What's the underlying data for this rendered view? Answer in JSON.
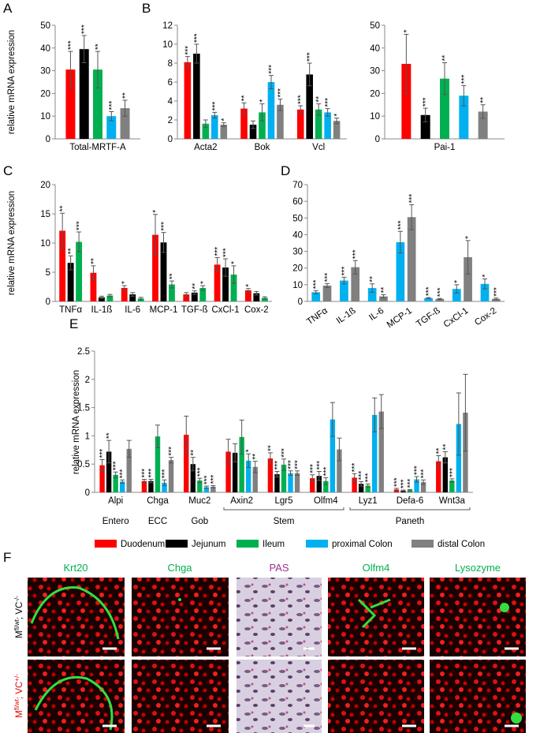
{
  "panel_labels": [
    "A",
    "B",
    "C",
    "D",
    "E",
    "F"
  ],
  "chart_data": [
    {
      "type": "bar",
      "ylabel": "relative mRNA expression",
      "categories": [
        "Total-MRTF-A"
      ],
      "ylim": [
        0,
        50
      ],
      "yticks": [
        0,
        10,
        20,
        30,
        40,
        50
      ],
      "series": [
        {
          "color": "#ff0000",
          "values": [
            30.5
          ],
          "errors": [
            8
          ],
          "significance": [
            "***"
          ]
        },
        {
          "color": "#000000",
          "values": [
            39.5
          ],
          "errors": [
            6
          ],
          "significance": [
            "***"
          ]
        },
        {
          "color": "#00b050",
          "values": [
            30.5
          ],
          "errors": [
            8
          ],
          "significance": [
            "**"
          ]
        },
        {
          "color": "#00b0f0",
          "values": [
            10
          ],
          "errors": [
            2
          ],
          "significance": [
            "***"
          ]
        },
        {
          "color": "#808080",
          "values": [
            13.5
          ],
          "errors": [
            3.5
          ],
          "significance": [
            "**"
          ]
        }
      ]
    },
    {
      "type": "bar",
      "categories": [
        "Acta2",
        "Bok",
        "Vcl"
      ],
      "ylim": [
        0,
        12
      ],
      "yticks": [
        0,
        2,
        4,
        6,
        8,
        10,
        12
      ],
      "series": [
        {
          "color": "#ff0000",
          "values": [
            8.1,
            3.2,
            3.1
          ],
          "errors": [
            0.6,
            0.6,
            0.4
          ],
          "significance": [
            "***",
            "**",
            "***"
          ]
        },
        {
          "color": "#000000",
          "values": [
            9,
            1.5,
            6.8
          ],
          "errors": [
            1,
            0.4,
            1.2
          ],
          "significance": [
            "***",
            null,
            "***"
          ]
        },
        {
          "color": "#00b050",
          "values": [
            1.6,
            2.8,
            3.1
          ],
          "errors": [
            0.4,
            0.9,
            0.6
          ],
          "significance": [
            null,
            "*",
            "**"
          ]
        },
        {
          "color": "#00b0f0",
          "values": [
            2.5,
            6,
            2.8
          ],
          "errors": [
            0.3,
            0.7,
            0.4
          ],
          "significance": [
            "***",
            "***",
            "***"
          ]
        },
        {
          "color": "#808080",
          "values": [
            1.5,
            3.6,
            1.9
          ],
          "errors": [
            0.2,
            0.6,
            0.3
          ],
          "significance": [
            "*",
            "***",
            "*"
          ]
        }
      ]
    },
    {
      "type": "bar",
      "categories": [
        "Pai-1"
      ],
      "ylim": [
        0,
        50
      ],
      "yticks": [
        0,
        10,
        20,
        30,
        40,
        50
      ],
      "series": [
        {
          "color": "#ff0000",
          "values": [
            33
          ],
          "errors": [
            13
          ],
          "significance": [
            "*"
          ]
        },
        {
          "color": "#000000",
          "values": [
            10.5
          ],
          "errors": [
            3
          ],
          "significance": [
            "***"
          ]
        },
        {
          "color": "#00b050",
          "values": [
            26.5
          ],
          "errors": [
            7
          ],
          "significance": [
            "**"
          ]
        },
        {
          "color": "#00b0f0",
          "values": [
            19
          ],
          "errors": [
            4.5
          ],
          "significance": [
            "***"
          ]
        },
        {
          "color": "#808080",
          "values": [
            12
          ],
          "errors": [
            3
          ],
          "significance": [
            "**"
          ]
        }
      ]
    },
    {
      "type": "bar",
      "ylabel": "relative mRNA expression",
      "categories": [
        "TNFα",
        "IL-1ß",
        "IL-6",
        "MCP-1",
        "TGF-ß",
        "CxCl-1",
        "Cox-2"
      ],
      "ylim": [
        0,
        20
      ],
      "yticks": [
        0,
        5,
        10,
        15,
        20
      ],
      "series": [
        {
          "color": "#ff0000",
          "values": [
            12.1,
            4.9,
            2.3,
            11.4,
            1.2,
            6.3,
            1.9
          ],
          "errors": [
            3,
            1.2,
            0.4,
            3.5,
            0.3,
            1.2,
            0.3
          ],
          "significance": [
            "**",
            "**",
            "*",
            "*",
            null,
            "***",
            "*"
          ]
        },
        {
          "color": "#000000",
          "values": [
            6.6,
            0.7,
            1.2,
            10.1,
            1.5,
            5.8,
            1.4
          ],
          "errors": [
            1.2,
            0.2,
            0.3,
            1.7,
            0.3,
            1.5,
            0.3
          ],
          "significance": [
            "**",
            null,
            null,
            "***",
            "**",
            "***",
            null
          ]
        },
        {
          "color": "#00b050",
          "values": [
            10.2,
            1.0,
            0.5,
            2.9,
            2.3,
            4.6,
            0.6
          ],
          "errors": [
            1.7,
            0.2,
            0.2,
            0.6,
            0.4,
            1.5,
            0.2
          ],
          "significance": [
            "***",
            null,
            null,
            "**",
            "*",
            "*",
            null
          ]
        }
      ]
    },
    {
      "type": "bar",
      "categories": [
        "TNFα",
        "IL-1ß",
        "IL-6",
        "MCP-1",
        "TGF-ß",
        "CxCl-1",
        "Cox-2"
      ],
      "ylim": [
        0,
        70
      ],
      "yticks": [
        0,
        10,
        20,
        30,
        40,
        50,
        60,
        70
      ],
      "series": [
        {
          "color": "#00b0f0",
          "values": [
            5.5,
            12.5,
            8,
            35.5,
            2,
            7.5,
            10.5
          ],
          "errors": [
            1,
            2,
            2.5,
            6.5,
            0.3,
            2.5,
            3
          ],
          "significance": [
            "***",
            "***",
            "**",
            "***",
            "***",
            "*",
            "*"
          ]
        },
        {
          "color": "#808080",
          "values": [
            9.5,
            20.5,
            3,
            50.5,
            1.5,
            26.5,
            1.5
          ],
          "errors": [
            1.2,
            4,
            1,
            7.5,
            0.3,
            10,
            0.5
          ],
          "significance": [
            "***",
            "***",
            "**",
            "***",
            "***",
            "*",
            "***"
          ]
        }
      ]
    },
    {
      "type": "bar",
      "ylabel": "relative mRNA expression",
      "groups": [
        {
          "label": "Entero",
          "categories": [
            "Alpi"
          ]
        },
        {
          "label": "ECC",
          "categories": [
            "Chga"
          ]
        },
        {
          "label": "Gob",
          "categories": [
            "Muc2"
          ]
        },
        {
          "label": "Stem",
          "categories": [
            "Axin2",
            "Lgr5",
            "Olfm4"
          ]
        },
        {
          "label": "Paneth",
          "categories": [
            "Lyz1",
            "Defa-6",
            "Wnt3a"
          ]
        }
      ],
      "ylim": [
        0,
        2.5
      ],
      "yticks": [
        0,
        0.5,
        1,
        1.5,
        2,
        2.5
      ],
      "series": [
        {
          "name": "Duodenum",
          "color": "#ff0000",
          "values": [
            0.48,
            0.2,
            1.02,
            0.72,
            0.6,
            0.25,
            0.26,
            0.05,
            0.55
          ],
          "errors": [
            0.1,
            0.03,
            0.33,
            0.22,
            0.1,
            0.06,
            0.07,
            0.02,
            0.1
          ],
          "significance": [
            "***",
            "***",
            null,
            null,
            "**",
            "***",
            "***",
            "***",
            "**"
          ]
        },
        {
          "name": "Jejunum",
          "color": "#000000",
          "values": [
            0.72,
            0.2,
            0.5,
            0.7,
            0.32,
            0.29,
            0.15,
            0.03,
            0.62
          ],
          "errors": [
            0.2,
            0.03,
            0.12,
            0.16,
            0.05,
            0.08,
            0.04,
            0.01,
            0.1
          ],
          "significance": [
            "**",
            "***",
            "**",
            null,
            "***",
            "***",
            "***",
            "***",
            "**"
          ]
        },
        {
          "name": "Ileum",
          "color": "#00b050",
          "values": [
            0.31,
            0.99,
            0.21,
            0.98,
            0.49,
            0.2,
            0.12,
            0.04,
            0.21
          ],
          "errors": [
            0.05,
            0.2,
            0.04,
            0.3,
            0.1,
            0.06,
            0.03,
            0.01,
            0.03
          ],
          "significance": [
            "***",
            null,
            "***",
            null,
            "***",
            "***",
            "***",
            "***",
            "***"
          ]
        },
        {
          "name": "proximal Colon",
          "color": "#00b0f0",
          "values": [
            0.19,
            0.17,
            0.09,
            0.56,
            0.34,
            1.29,
            1.37,
            0.23,
            1.21
          ],
          "errors": [
            0.03,
            0.05,
            0.02,
            0.12,
            0.04,
            0.3,
            0.3,
            0.05,
            0.55
          ],
          "significance": [
            "***",
            "***",
            "***",
            "*",
            "***",
            null,
            null,
            "***",
            null
          ]
        },
        {
          "name": "distal Colon",
          "color": "#808080",
          "values": [
            0.77,
            0.57,
            0.1,
            0.45,
            0.34,
            0.76,
            1.43,
            0.18,
            1.41
          ],
          "errors": [
            0.15,
            0.05,
            0.02,
            0.1,
            0.04,
            0.2,
            0.3,
            0.04,
            0.68
          ],
          "significance": [
            null,
            "***",
            "***",
            "**",
            "***",
            null,
            null,
            "***",
            null
          ]
        }
      ]
    }
  ],
  "images": {
    "columns": [
      "Krt20",
      "Chga",
      "PAS",
      "Olfm4",
      "Lysozyme"
    ],
    "rows": [
      {
        "parts": [
          "M",
          "fl/wt",
          "; VC",
          "-/-"
        ]
      },
      {
        "parts": [
          "M",
          "fl/wt",
          "; VC",
          "+/-"
        ]
      }
    ]
  }
}
